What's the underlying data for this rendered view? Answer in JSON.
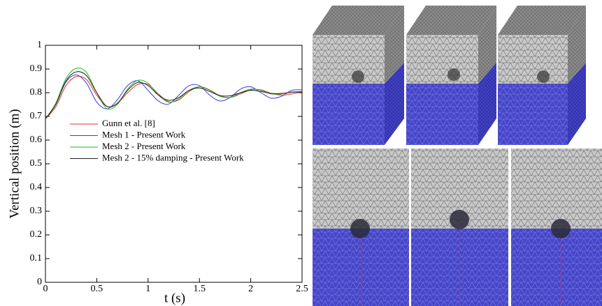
{
  "chart_data": {
    "type": "line",
    "xlabel": "t (s)",
    "ylabel": "Vertical position (m)",
    "x": [
      0,
      0.1,
      0.2,
      0.3,
      0.4,
      0.5,
      0.6,
      0.7,
      0.8,
      0.9,
      1.0,
      1.1,
      1.2,
      1.3,
      1.4,
      1.5,
      1.6,
      1.7,
      1.8,
      1.9,
      2.0,
      2.1,
      2.2,
      2.3,
      2.4,
      2.5
    ],
    "series": [
      {
        "name": "Gunn et al. [8]",
        "color": "#e03030",
        "values": [
          0.69,
          0.74,
          0.83,
          0.868,
          0.855,
          0.79,
          0.742,
          0.755,
          0.8,
          0.835,
          0.835,
          0.795,
          0.762,
          0.77,
          0.805,
          0.825,
          0.812,
          0.787,
          0.78,
          0.795,
          0.812,
          0.812,
          0.797,
          0.79,
          0.795,
          0.803
        ]
      },
      {
        "name": "Mesh 1 - Present Work",
        "color": "#3a3ae0",
        "values": [
          0.69,
          0.75,
          0.845,
          0.875,
          0.84,
          0.76,
          0.732,
          0.77,
          0.83,
          0.85,
          0.81,
          0.765,
          0.752,
          0.79,
          0.83,
          0.83,
          0.79,
          0.765,
          0.78,
          0.815,
          0.825,
          0.8,
          0.777,
          0.785,
          0.81,
          0.812
        ]
      },
      {
        "name": "Mesh 2 - Present Work",
        "color": "#22bb22",
        "values": [
          0.69,
          0.755,
          0.86,
          0.903,
          0.885,
          0.8,
          0.733,
          0.75,
          0.815,
          0.852,
          0.84,
          0.79,
          0.76,
          0.775,
          0.81,
          0.825,
          0.81,
          0.785,
          0.78,
          0.8,
          0.815,
          0.81,
          0.795,
          0.795,
          0.803,
          0.805
        ]
      },
      {
        "name": "Mesh 2 - 15% damping - Present Work",
        "color": "#222222",
        "values": [
          0.69,
          0.75,
          0.85,
          0.888,
          0.872,
          0.8,
          0.742,
          0.755,
          0.81,
          0.843,
          0.83,
          0.79,
          0.768,
          0.78,
          0.81,
          0.82,
          0.805,
          0.788,
          0.787,
          0.8,
          0.81,
          0.805,
          0.797,
          0.797,
          0.802,
          0.803
        ]
      }
    ],
    "xlim": [
      0,
      2.5
    ],
    "xticks": [
      0,
      0.5,
      1,
      1.5,
      2,
      2.5
    ],
    "ylim": [
      0,
      1
    ],
    "yticks": [
      0,
      0.1,
      0.2,
      0.3,
      0.4,
      0.5,
      0.6,
      0.7,
      0.8,
      0.9,
      1
    ],
    "grid": false,
    "legend": "center left"
  }
}
